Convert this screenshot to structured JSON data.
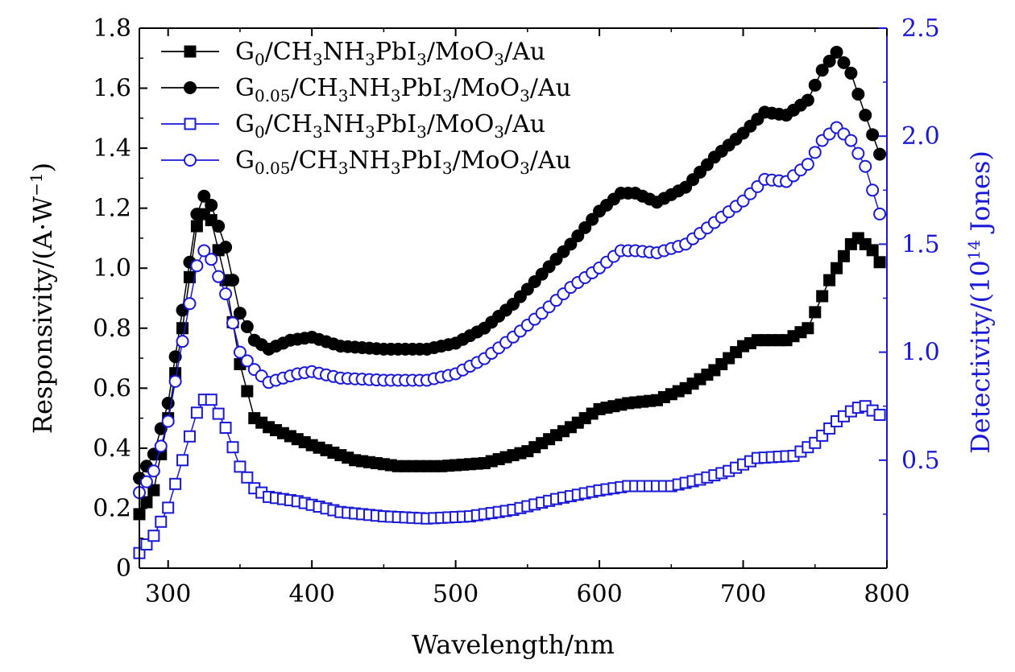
{
  "chart_data": {
    "type": "line",
    "xlabel": "Wavelength/nm",
    "ylabel_left": "Responsivity/(A·W",
    "ylabel_left_sup": "−1",
    "ylabel_left_close": ")",
    "ylabel_right": "Detectivity/(10",
    "ylabel_right_sup": "14",
    "ylabel_right_close": " Jones)",
    "xlim": [
      280,
      800
    ],
    "ylim_left": [
      0,
      1.8
    ],
    "ylim_right": [
      0,
      2.5
    ],
    "x_ticks": [
      300,
      400,
      500,
      600,
      700,
      800
    ],
    "y_left_ticks": [
      "0",
      "0.2",
      "0.4",
      "0.6",
      "0.8",
      "1.0",
      "1.2",
      "1.4",
      "1.6",
      "1.8"
    ],
    "y_right_ticks": [
      "0.5",
      "1.0",
      "1.5",
      "2.0",
      "2.5"
    ],
    "colors": {
      "black": "#000000",
      "blue": "#1a1ad6"
    },
    "legend_position": "top-left",
    "series": [
      {
        "label_parts": [
          "G",
          "0",
          "/CH",
          "3",
          "NH",
          "3",
          "PbI",
          "3",
          "/MoO",
          "3",
          "/Au"
        ],
        "axis": "left",
        "color": "#000000",
        "marker": "square",
        "filled": true,
        "points": [
          [
            280,
            0.18
          ],
          [
            290,
            0.26
          ],
          [
            300,
            0.5
          ],
          [
            310,
            0.8
          ],
          [
            320,
            1.14
          ],
          [
            325,
            1.18
          ],
          [
            330,
            1.16
          ],
          [
            340,
            0.96
          ],
          [
            350,
            0.68
          ],
          [
            360,
            0.5
          ],
          [
            370,
            0.47
          ],
          [
            380,
            0.45
          ],
          [
            400,
            0.41
          ],
          [
            430,
            0.36
          ],
          [
            460,
            0.34
          ],
          [
            490,
            0.34
          ],
          [
            520,
            0.35
          ],
          [
            550,
            0.39
          ],
          [
            580,
            0.47
          ],
          [
            600,
            0.53
          ],
          [
            620,
            0.55
          ],
          [
            640,
            0.56
          ],
          [
            660,
            0.6
          ],
          [
            680,
            0.66
          ],
          [
            700,
            0.74
          ],
          [
            710,
            0.76
          ],
          [
            730,
            0.76
          ],
          [
            745,
            0.8
          ],
          [
            760,
            0.96
          ],
          [
            775,
            1.08
          ],
          [
            780,
            1.1
          ],
          [
            790,
            1.06
          ],
          [
            795,
            1.02
          ]
        ]
      },
      {
        "label_parts": [
          "G",
          "0.05",
          "/CH",
          "3",
          "NH",
          "3",
          "PbI",
          "3",
          "/MoO",
          "3",
          "/Au"
        ],
        "axis": "left",
        "color": "#000000",
        "marker": "circle",
        "filled": true,
        "points": [
          [
            280,
            0.3
          ],
          [
            290,
            0.38
          ],
          [
            300,
            0.55
          ],
          [
            310,
            0.86
          ],
          [
            320,
            1.18
          ],
          [
            325,
            1.24
          ],
          [
            330,
            1.21
          ],
          [
            340,
            1.07
          ],
          [
            350,
            0.85
          ],
          [
            360,
            0.76
          ],
          [
            370,
            0.73
          ],
          [
            385,
            0.76
          ],
          [
            400,
            0.77
          ],
          [
            420,
            0.74
          ],
          [
            450,
            0.73
          ],
          [
            480,
            0.73
          ],
          [
            500,
            0.75
          ],
          [
            520,
            0.8
          ],
          [
            540,
            0.88
          ],
          [
            560,
            0.98
          ],
          [
            580,
            1.08
          ],
          [
            600,
            1.19
          ],
          [
            615,
            1.25
          ],
          [
            625,
            1.25
          ],
          [
            640,
            1.22
          ],
          [
            660,
            1.27
          ],
          [
            680,
            1.37
          ],
          [
            700,
            1.45
          ],
          [
            715,
            1.52
          ],
          [
            730,
            1.51
          ],
          [
            745,
            1.56
          ],
          [
            755,
            1.66
          ],
          [
            765,
            1.72
          ],
          [
            775,
            1.65
          ],
          [
            785,
            1.51
          ],
          [
            795,
            1.38
          ]
        ]
      },
      {
        "label_parts": [
          "G",
          "0",
          "/CH",
          "3",
          "NH",
          "3",
          "PbI",
          "3",
          "/MoO",
          "3",
          "/Au"
        ],
        "axis": "right",
        "color": "#1a1ad6",
        "marker": "square",
        "filled": false,
        "points": [
          [
            280,
            0.07
          ],
          [
            290,
            0.15
          ],
          [
            300,
            0.28
          ],
          [
            310,
            0.5
          ],
          [
            320,
            0.72
          ],
          [
            325,
            0.78
          ],
          [
            330,
            0.78
          ],
          [
            340,
            0.65
          ],
          [
            350,
            0.47
          ],
          [
            360,
            0.37
          ],
          [
            370,
            0.33
          ],
          [
            390,
            0.31
          ],
          [
            420,
            0.26
          ],
          [
            450,
            0.24
          ],
          [
            480,
            0.23
          ],
          [
            510,
            0.24
          ],
          [
            540,
            0.27
          ],
          [
            570,
            0.32
          ],
          [
            600,
            0.36
          ],
          [
            620,
            0.38
          ],
          [
            650,
            0.38
          ],
          [
            670,
            0.41
          ],
          [
            690,
            0.45
          ],
          [
            710,
            0.51
          ],
          [
            735,
            0.52
          ],
          [
            750,
            0.58
          ],
          [
            765,
            0.68
          ],
          [
            778,
            0.74
          ],
          [
            785,
            0.75
          ],
          [
            795,
            0.71
          ]
        ]
      },
      {
        "label_parts": [
          "G",
          "0.05",
          "/CH",
          "3",
          "NH",
          "3",
          "PbI",
          "3",
          "/MoO",
          "3",
          "/Au"
        ],
        "axis": "right",
        "color": "#1a1ad6",
        "marker": "circle",
        "filled": false,
        "points": [
          [
            280,
            0.35
          ],
          [
            290,
            0.45
          ],
          [
            300,
            0.68
          ],
          [
            310,
            1.05
          ],
          [
            320,
            1.4
          ],
          [
            325,
            1.47
          ],
          [
            330,
            1.43
          ],
          [
            340,
            1.27
          ],
          [
            350,
            1.0
          ],
          [
            360,
            0.92
          ],
          [
            370,
            0.86
          ],
          [
            390,
            0.9
          ],
          [
            400,
            0.91
          ],
          [
            420,
            0.88
          ],
          [
            450,
            0.87
          ],
          [
            480,
            0.87
          ],
          [
            500,
            0.9
          ],
          [
            520,
            0.97
          ],
          [
            540,
            1.07
          ],
          [
            560,
            1.18
          ],
          [
            580,
            1.3
          ],
          [
            600,
            1.39
          ],
          [
            615,
            1.47
          ],
          [
            625,
            1.47
          ],
          [
            640,
            1.46
          ],
          [
            660,
            1.5
          ],
          [
            680,
            1.6
          ],
          [
            700,
            1.7
          ],
          [
            715,
            1.8
          ],
          [
            730,
            1.79
          ],
          [
            745,
            1.87
          ],
          [
            755,
            1.98
          ],
          [
            765,
            2.04
          ],
          [
            775,
            1.98
          ],
          [
            785,
            1.86
          ],
          [
            795,
            1.64
          ]
        ]
      }
    ]
  }
}
